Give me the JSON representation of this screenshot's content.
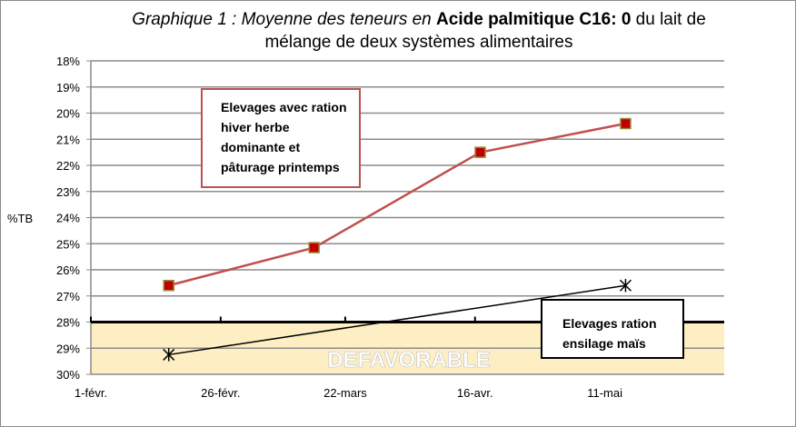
{
  "chart_data": {
    "type": "line",
    "title_parts": {
      "italic": "Graphique 1 : Moyenne des teneurs en",
      "bold": "Acide palmitique C16: 0",
      "normal1": "du lait de",
      "line2": "mélange de deux systèmes alimentaires"
    },
    "ylabel": "%TB",
    "y_inverted": true,
    "ylim": [
      18,
      30
    ],
    "y_ticks": [
      "18%",
      "19%",
      "20%",
      "21%",
      "22%",
      "23%",
      "24%",
      "25%",
      "26%",
      "27%",
      "28%",
      "29%",
      "30%"
    ],
    "x_ticks": [
      "1-févr.",
      "26-févr.",
      "22-mars",
      "16-avr.",
      "11-mai"
    ],
    "x_tick_days": [
      0,
      25,
      49,
      74,
      99
    ],
    "xlim_days": [
      0,
      122
    ],
    "grid": true,
    "threshold": {
      "value": 28,
      "label": "DEFAVORABLE",
      "zone_color": "#fdeec4"
    },
    "series": [
      {
        "name": "Elevages avec ration hiver herbe dominante et pâturage printemps",
        "label_lines": [
          "Elevages avec ration",
          "hiver herbe",
          "dominante et",
          "pâturage printemps"
        ],
        "color": "#c0504d",
        "marker": "square",
        "x_days": [
          15,
          43,
          75,
          103
        ],
        "values": [
          26.6,
          25.15,
          21.5,
          20.4
        ]
      },
      {
        "name": "Elevages ration ensilage maïs",
        "label_lines": [
          "Elevages ration",
          "ensilage maïs"
        ],
        "color": "#000000",
        "marker": "star",
        "x_days": [
          15,
          103
        ],
        "values": [
          29.25,
          26.6
        ]
      }
    ]
  }
}
